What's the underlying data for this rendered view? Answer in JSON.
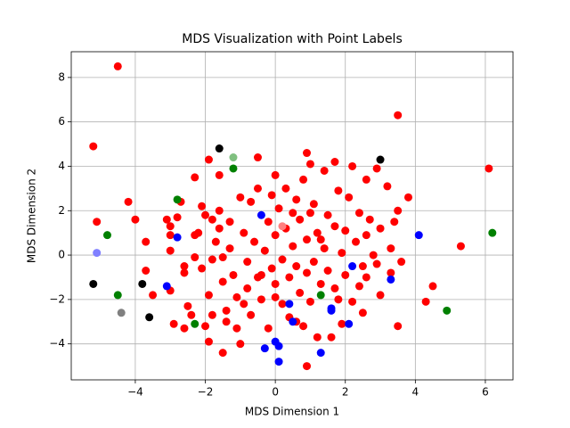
{
  "chart_data": {
    "type": "scatter",
    "title": "MDS Visualization with Point Labels",
    "x_label": "MDS Dimension 1",
    "y_label": "MDS Dimension 2",
    "xlim": [
      -5.83,
      6.79
    ],
    "ylim": [
      -5.62,
      9.16
    ],
    "xticks": [
      {
        "value": -4,
        "label": "−4"
      },
      {
        "value": -2,
        "label": "−2"
      },
      0,
      2,
      4,
      6
    ],
    "yticks": [
      {
        "value": -4,
        "label": "−4"
      },
      {
        "value": -2,
        "label": "−2"
      },
      0,
      2,
      4,
      6,
      8
    ],
    "grid": true,
    "series": [
      {
        "color": "#ff0000",
        "x": [
          -4.5,
          -5.2,
          3.5,
          6.1,
          5.3,
          4.3,
          4.5,
          3.5,
          0.9,
          -1.5,
          -4.2,
          -4.0,
          -5.1,
          -3.7,
          -3.7,
          -3.5,
          3.8,
          2.9,
          2.6,
          1.7,
          0.9,
          1.0,
          -0.5,
          -1.9,
          -2.3,
          -1.6,
          2.2,
          0.0,
          -3.1,
          -3.0,
          -3.0,
          -2.8,
          -2.7,
          -3.0,
          -3.0,
          -2.9,
          -2.6,
          -2.6,
          -2.5,
          -2.6,
          -2.4,
          -2.3,
          -2.2,
          -2.1,
          -2.0,
          -2.1,
          -1.9,
          -2.0,
          -1.9,
          -1.8,
          -1.8,
          -1.7,
          -1.6,
          -1.6,
          -1.5,
          -1.5,
          -1.4,
          -1.4,
          -1.3,
          -1.3,
          -1.2,
          -1.1,
          -1.1,
          -1.0,
          -1.0,
          -0.9,
          -0.8,
          -0.8,
          -0.7,
          -0.7,
          -0.6,
          -0.5,
          -0.5,
          -0.4,
          -0.3,
          -0.2,
          -0.2,
          -0.1,
          -0.1,
          0.0,
          0.0,
          0.1,
          0.2,
          0.2,
          0.3,
          0.3,
          0.4,
          0.4,
          0.5,
          0.6,
          0.6,
          0.7,
          0.7,
          0.8,
          0.8,
          0.9,
          0.9,
          1.0,
          1.0,
          1.1,
          1.1,
          1.2,
          1.2,
          1.3,
          1.4,
          1.4,
          1.5,
          1.5,
          1.6,
          1.7,
          1.7,
          1.8,
          1.8,
          1.9,
          2.0,
          2.0,
          2.1,
          2.2,
          2.3,
          2.4,
          2.4,
          2.5,
          2.6,
          2.6,
          2.7,
          2.8,
          2.9,
          3.0,
          3.0,
          3.2,
          3.3,
          3.3,
          3.4,
          3.6,
          3.5,
          -0.9,
          0.0,
          0.5,
          -1.8,
          -2.3,
          1.9,
          0.6,
          -0.4,
          2.5,
          1.3
        ],
        "y": [
          8.5,
          4.9,
          6.3,
          3.9,
          0.4,
          -2.1,
          -1.4,
          -3.2,
          -5.0,
          -4.4,
          2.4,
          1.6,
          1.5,
          0.6,
          -0.7,
          -1.8,
          2.6,
          3.9,
          3.4,
          4.2,
          4.6,
          4.1,
          4.4,
          4.3,
          3.5,
          3.6,
          4.0,
          3.6,
          1.6,
          1.3,
          0.9,
          1.7,
          2.4,
          0.2,
          -1.6,
          -3.1,
          -0.5,
          -0.8,
          -2.3,
          -3.3,
          -2.7,
          -0.1,
          1.0,
          2.2,
          1.8,
          -0.6,
          -1.8,
          -3.2,
          -3.9,
          -2.7,
          -0.2,
          0.6,
          1.2,
          2.0,
          -0.1,
          -1.2,
          -2.5,
          -3.0,
          1.5,
          0.3,
          -0.9,
          -1.9,
          -3.3,
          -4.0,
          2.6,
          1.0,
          -0.3,
          -1.5,
          -2.7,
          2.4,
          0.6,
          3.0,
          -1.0,
          -2.0,
          0.2,
          1.5,
          -3.3,
          2.7,
          -0.6,
          -1.3,
          0.9,
          2.1,
          -2.2,
          -0.2,
          1.2,
          3.0,
          -1.0,
          -2.8,
          0.4,
          2.5,
          -0.5,
          1.6,
          -1.7,
          -3.2,
          3.4,
          0.7,
          -0.8,
          1.9,
          -2.1,
          2.3,
          -0.3,
          -3.7,
          1.0,
          -1.3,
          3.8,
          0.3,
          1.8,
          -0.7,
          -3.7,
          1.3,
          -1.5,
          2.9,
          -2.0,
          0.1,
          1.1,
          -0.9,
          2.6,
          -2.1,
          0.6,
          1.9,
          -1.4,
          -2.6,
          0.9,
          -1.0,
          1.6,
          0.0,
          -0.4,
          1.2,
          -1.8,
          3.1,
          0.3,
          -0.8,
          1.5,
          -0.3,
          2.0,
          -2.2,
          -1.9,
          1.9,
          1.6,
          0.9,
          -3.1,
          -3.0,
          -0.9,
          -0.5,
          0.7
        ]
      },
      {
        "color": "#ff8080",
        "x": [
          0.2
        ],
        "y": [
          1.3
        ]
      },
      {
        "color": "#0000ff",
        "x": [
          -0.4,
          -2.8,
          -3.1,
          4.1,
          2.2,
          3.3,
          0.4,
          1.6,
          1.6,
          0.5,
          2.1,
          -0.3,
          0.0,
          0.1,
          0.1,
          1.3
        ],
        "y": [
          1.8,
          0.8,
          -1.4,
          0.9,
          -0.5,
          -1.1,
          -2.2,
          -2.4,
          -2.5,
          -3.0,
          -3.1,
          -4.2,
          -3.9,
          -4.1,
          -4.8,
          -4.4
        ]
      },
      {
        "color": "#8080ff",
        "x": [
          -5.1
        ],
        "y": [
          0.1
        ]
      },
      {
        "color": "#008000",
        "x": [
          -2.8,
          -1.2,
          -4.8,
          -4.5,
          -2.3,
          1.3,
          4.9,
          6.2
        ],
        "y": [
          2.5,
          3.9,
          0.9,
          -1.8,
          -3.1,
          -1.8,
          -2.5,
          1.0
        ]
      },
      {
        "color": "#80c080",
        "x": [
          -1.2
        ],
        "y": [
          4.4
        ]
      },
      {
        "color": "#000000",
        "x": [
          -1.6,
          3.0,
          -5.2,
          -3.8,
          -3.6
        ],
        "y": [
          4.8,
          4.3,
          -1.3,
          -1.3,
          -2.8
        ]
      },
      {
        "color": "#808080",
        "x": [
          -4.4
        ],
        "y": [
          -2.6
        ]
      }
    ]
  }
}
